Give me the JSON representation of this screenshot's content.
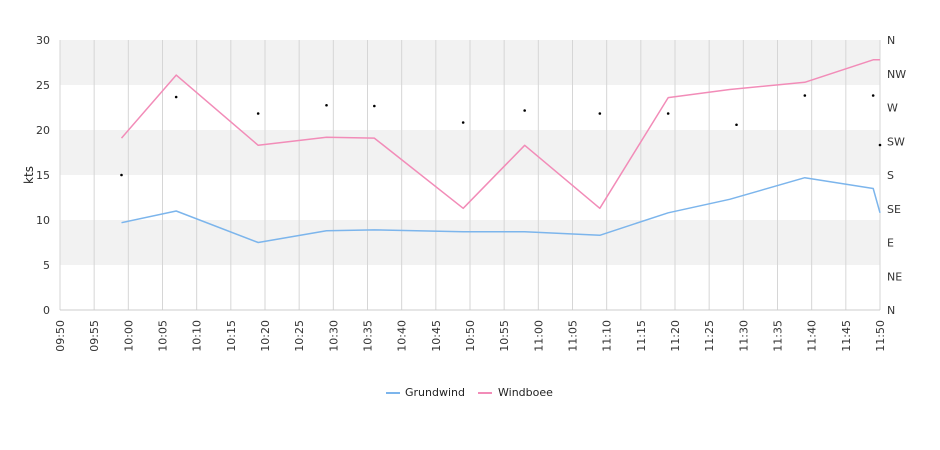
{
  "chart_data": {
    "type": "line",
    "ylabel": "kts",
    "ylim": [
      0,
      30
    ],
    "y_ticks": [
      0,
      5,
      10,
      15,
      20,
      25,
      30
    ],
    "x_ticks": [
      "09:50",
      "09:55",
      "10:00",
      "10:05",
      "10:10",
      "10:15",
      "10:20",
      "10:25",
      "10:30",
      "10:35",
      "10:40",
      "10:45",
      "10:50",
      "10:55",
      "11:00",
      "11:05",
      "11:10",
      "11:15",
      "11:20",
      "11:25",
      "11:30",
      "11:35",
      "11:40",
      "11:45",
      "11:50"
    ],
    "right_axis_ticks": [
      "N",
      "NE",
      "E",
      "SE",
      "S",
      "SW",
      "W",
      "NW",
      "N"
    ],
    "colors": {
      "Grundwind": "#7cb5ec",
      "Windboee": "#f28cb8",
      "direction": "#000000",
      "band": "#f2f2f2",
      "grid": "#d6d6d6"
    },
    "series": [
      {
        "name": "Grundwind",
        "x": [
          "09:59",
          "10:07",
          "10:19",
          "10:29",
          "10:36",
          "10:49",
          "10:58",
          "11:09",
          "11:19",
          "11:28",
          "11:39",
          "11:49",
          "11:50"
        ],
        "values": [
          9.7,
          11.0,
          7.5,
          8.8,
          8.9,
          8.7,
          8.7,
          8.3,
          10.8,
          12.3,
          14.7,
          13.5,
          10.8
        ]
      },
      {
        "name": "Windboee",
        "x": [
          "09:59",
          "10:07",
          "10:19",
          "10:29",
          "10:36",
          "10:49",
          "10:58",
          "11:09",
          "11:19",
          "11:28",
          "11:39",
          "11:49",
          "11:50"
        ],
        "values": [
          19.1,
          26.1,
          18.3,
          19.2,
          19.1,
          11.3,
          18.3,
          11.3,
          23.6,
          24.5,
          25.3,
          27.8,
          27.8
        ]
      }
    ],
    "wind_direction": {
      "name": "direction",
      "x": [
        "09:59",
        "10:07",
        "10:19",
        "10:29",
        "10:36",
        "10:49",
        "10:58",
        "11:09",
        "11:19",
        "11:29",
        "11:39",
        "11:49",
        "11:50"
      ],
      "degrees": [
        180,
        284,
        262,
        273,
        272,
        250,
        266,
        262,
        262,
        247,
        286,
        286,
        220
      ]
    },
    "grid": true,
    "legend_position": "bottom-center"
  }
}
